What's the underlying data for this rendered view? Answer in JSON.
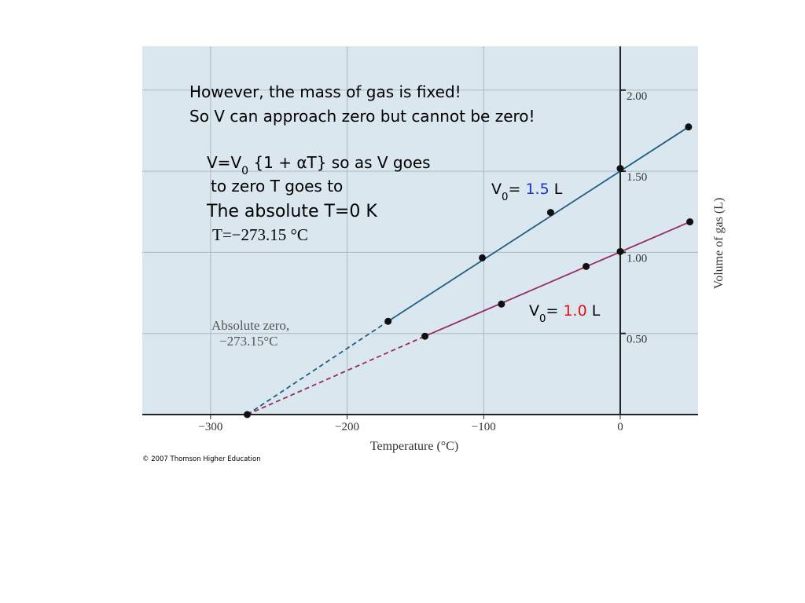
{
  "chart_data": {
    "type": "line",
    "x_label": "Temperature (°C)",
    "y_label": "Volume of gas (L)",
    "xlim": [
      -350,
      57
    ],
    "ylim": [
      0,
      2.27
    ],
    "xticks": [
      {
        "value": -300,
        "label": "−300"
      },
      {
        "value": -200,
        "label": "−200"
      },
      {
        "value": -100,
        "label": "−100"
      },
      0
    ],
    "yticks": [
      {
        "value": 0.5,
        "label": "0.50"
      },
      {
        "value": 1.0,
        "label": "1.00"
      },
      {
        "value": 1.5,
        "label": "1.50"
      },
      {
        "value": 2.0,
        "label": "2.00"
      }
    ],
    "grid": true,
    "background": "#dbe7ee",
    "zero_point": {
      "x": -273.15,
      "y": 0,
      "label_lines": [
        "Absolute zero,",
        "−273.15°C"
      ]
    },
    "series": [
      {
        "color": "#1d5f85",
        "x": [
          -170,
          -101,
          -51,
          0,
          50
        ],
        "values": [
          0.575,
          0.966,
          1.246,
          1.517,
          1.773
        ],
        "label": [
          {
            "text": "V"
          },
          {
            "text": "0",
            "sub": true
          },
          {
            "text": "= "
          },
          {
            "text": "1.5",
            "color": "#1a2fd6"
          },
          {
            "text": " L"
          }
        ]
      },
      {
        "color": "#962a68",
        "x": [
          -143,
          -87,
          -25,
          0,
          51
        ],
        "values": [
          0.483,
          0.681,
          0.913,
          1.005,
          1.188
        ],
        "label": [
          {
            "text": "V"
          },
          {
            "text": "0",
            "sub": true
          },
          {
            "text": "= "
          },
          {
            "text": "1.0",
            "color": "#e01010"
          },
          {
            "text": " L"
          }
        ]
      }
    ],
    "annotations": [
      [
        {
          "text": "However, the mass of gas is fixed!"
        }
      ],
      [
        {
          "text": "So V can approach zero but cannot be zero!"
        }
      ],
      [
        {
          "text": "V=V"
        },
        {
          "text": "0",
          "sub": true
        },
        {
          "text": " {1 + αT} so as V goes"
        }
      ],
      [
        {
          "text": "to zero T goes to"
        }
      ],
      [
        {
          "text": "The absolute T=0 K"
        }
      ],
      [
        {
          "text": "T=−273.15 °C"
        }
      ]
    ],
    "credit": "© 2007 Thomson Higher Education"
  }
}
